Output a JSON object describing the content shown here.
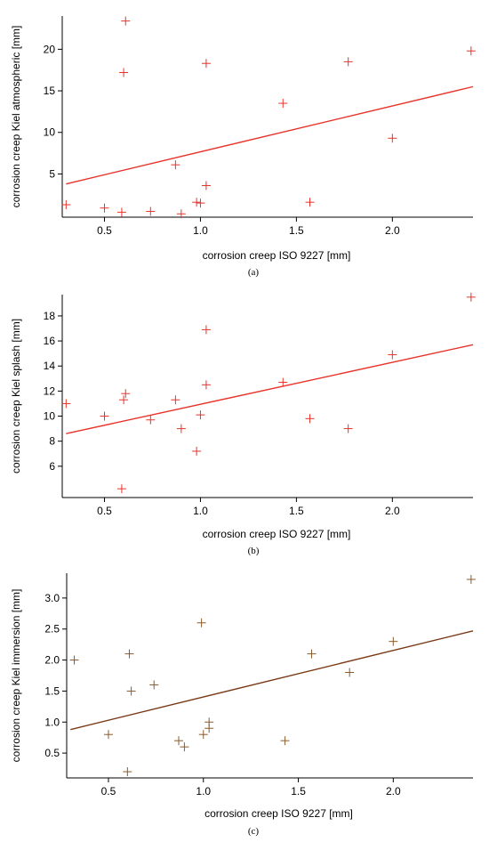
{
  "chart_data": [
    {
      "type": "scatter",
      "caption": "(a)",
      "xlabel": "corrosion creep ISO 9227 [mm]",
      "ylabel": "corrosion creep Kiel atmospheric [mm]",
      "xlim": [
        0.28,
        2.42
      ],
      "ylim": [
        -0.2,
        24.0
      ],
      "xticks": [
        0.5,
        1.0,
        1.5,
        2.0
      ],
      "xtick_labels": [
        "0.5",
        "1.0",
        "1.5",
        "2.0"
      ],
      "yticks": [
        5,
        10,
        15,
        20
      ],
      "ytick_labels": [
        "5",
        "10",
        "15",
        "20"
      ],
      "marker_color": "#e8332a",
      "line_color": "#e8332a",
      "trendline": [
        [
          0.3,
          3.8
        ],
        [
          2.42,
          15.5
        ]
      ],
      "series": [
        {
          "x": [
            0.3,
            0.5,
            0.59,
            0.6,
            0.61,
            0.74,
            0.87,
            0.9,
            0.98,
            1.0,
            1.03,
            1.03,
            1.43,
            1.57,
            1.77,
            2.0,
            2.41
          ],
          "y": [
            1.3,
            0.9,
            0.4,
            17.2,
            23.4,
            0.5,
            6.1,
            0.2,
            1.6,
            1.5,
            3.6,
            18.3,
            13.5,
            1.6,
            18.5,
            9.3,
            19.8
          ]
        }
      ]
    },
    {
      "type": "scatter",
      "caption": "(b)",
      "xlabel": "corrosion creep ISO 9227 [mm]",
      "ylabel": "corrosion creep Kiel splash [mm]",
      "xlim": [
        0.28,
        2.42
      ],
      "ylim": [
        3.5,
        19.7
      ],
      "xticks": [
        0.5,
        1.0,
        1.5,
        2.0
      ],
      "xtick_labels": [
        "0.5",
        "1.0",
        "1.5",
        "2.0"
      ],
      "yticks": [
        6,
        8,
        10,
        12,
        14,
        16,
        18
      ],
      "ytick_labels": [
        "6",
        "8",
        "10",
        "12",
        "14",
        "16",
        "18"
      ],
      "marker_color": "#e8332a",
      "line_color": "#e8332a",
      "trendline": [
        [
          0.3,
          8.6
        ],
        [
          2.42,
          15.7
        ]
      ],
      "series": [
        {
          "x": [
            0.3,
            0.5,
            0.59,
            0.6,
            0.61,
            0.74,
            0.87,
            0.9,
            0.98,
            1.0,
            1.03,
            1.03,
            1.43,
            1.57,
            1.77,
            2.0,
            2.41
          ],
          "y": [
            11.0,
            10.0,
            4.2,
            11.3,
            11.8,
            9.7,
            11.3,
            9.0,
            7.2,
            10.1,
            12.5,
            16.9,
            12.7,
            9.8,
            9.0,
            14.9,
            19.5
          ]
        }
      ]
    },
    {
      "type": "scatter",
      "caption": "(c)",
      "xlabel": "corrosion creep ISO 9227 [mm]",
      "ylabel": "corrosion creep Kiel immersion [mm]",
      "xlim": [
        0.28,
        2.42
      ],
      "ylim": [
        0.1,
        3.4
      ],
      "xticks": [
        0.5,
        1.0,
        1.5,
        2.0
      ],
      "xtick_labels": [
        "0.5",
        "1.0",
        "1.5",
        "2.0"
      ],
      "yticks": [
        0.5,
        1.0,
        1.5,
        2.0,
        2.5,
        3.0
      ],
      "ytick_labels": [
        "0.5",
        "1.0",
        "1.5",
        "2.0",
        "2.5",
        "3.0"
      ],
      "marker_color": "#8a5a2b",
      "line_color": "#7a3a18",
      "trendline": [
        [
          0.3,
          0.88
        ],
        [
          2.42,
          2.47
        ]
      ],
      "series": [
        {
          "x": [
            0.32,
            0.5,
            0.6,
            0.61,
            0.62,
            0.74,
            0.87,
            0.9,
            0.99,
            1.0,
            1.03,
            1.03,
            1.43,
            1.57,
            1.77,
            2.0,
            2.41
          ],
          "y": [
            2.0,
            0.8,
            0.2,
            2.1,
            1.5,
            1.6,
            0.7,
            0.6,
            2.6,
            0.8,
            0.9,
            1.0,
            0.7,
            2.1,
            1.8,
            2.3,
            3.3
          ]
        }
      ]
    }
  ]
}
